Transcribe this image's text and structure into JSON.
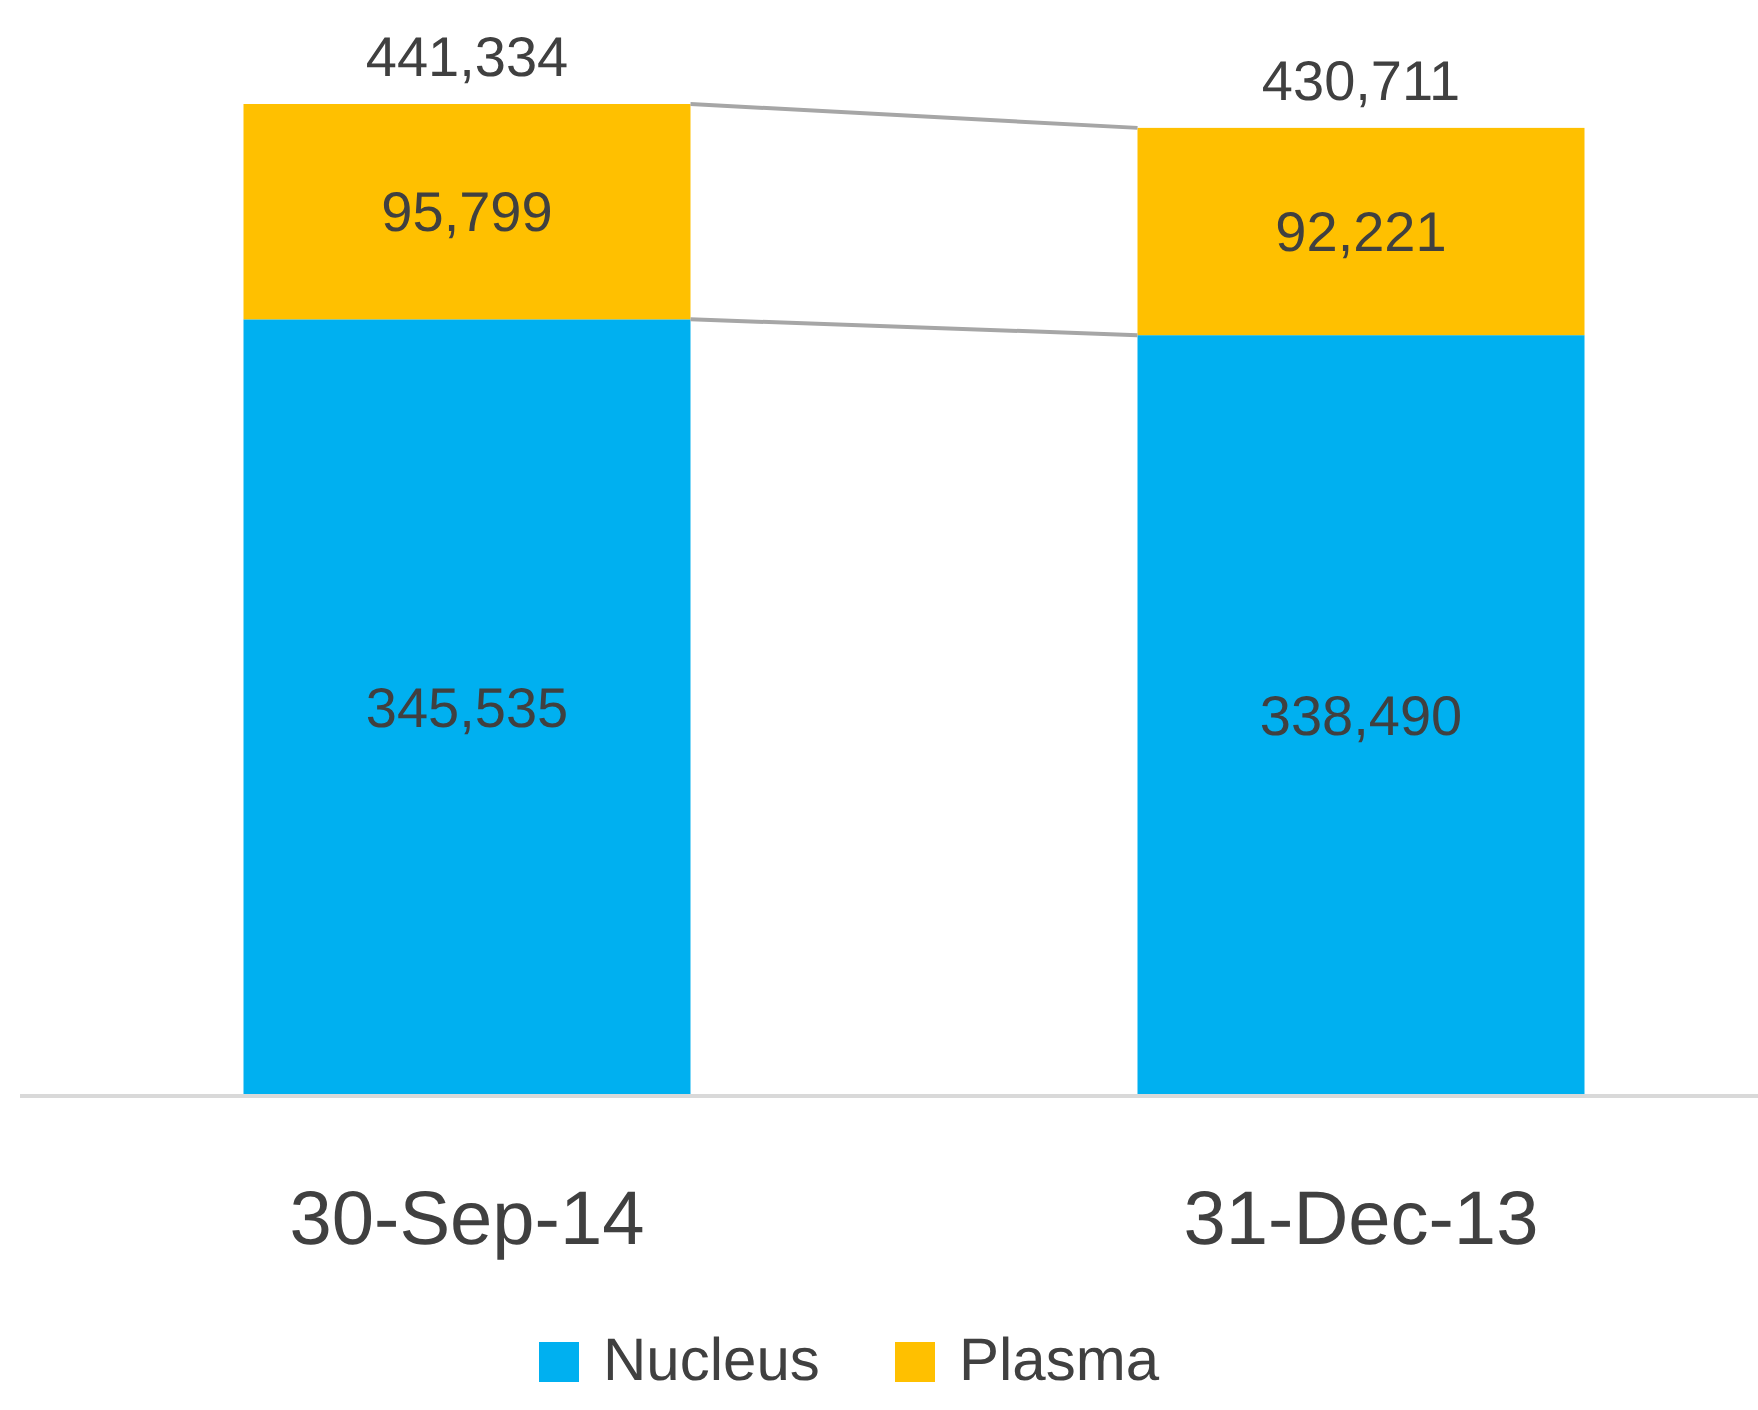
{
  "chart_data": {
    "type": "bar",
    "stacked": true,
    "categories": [
      "30-Sep-14",
      "31-Dec-13"
    ],
    "series": [
      {
        "name": "Nucleus",
        "color": "#00b0f0",
        "values": [
          345535,
          338490
        ],
        "value_labels": [
          "345,535",
          "338,490"
        ]
      },
      {
        "name": "Plasma",
        "color": "#ffc000",
        "values": [
          95799,
          92221
        ],
        "value_labels": [
          "95,799",
          "92,221"
        ]
      }
    ],
    "totals": [
      "441,334",
      "430,711"
    ],
    "legend": "bottom"
  }
}
